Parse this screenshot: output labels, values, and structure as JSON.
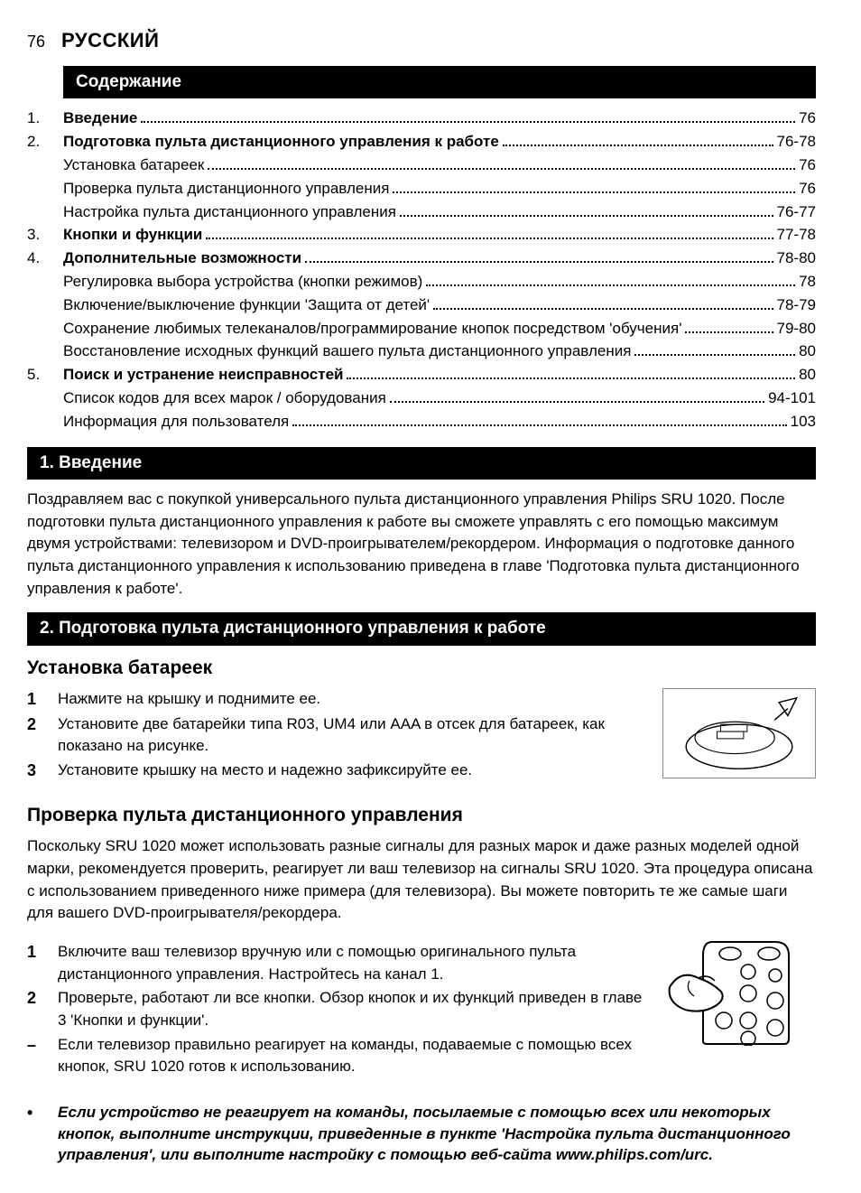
{
  "header": {
    "page_number": "76",
    "language": "РУССКИЙ"
  },
  "toc": {
    "title": "Содержание",
    "items": [
      {
        "num": "1.",
        "label": "Введение",
        "page": "76",
        "bold": true
      },
      {
        "num": "2.",
        "label": "Подготовка пульта дистанционного управления к работе",
        "page": "76-78",
        "bold": true
      },
      {
        "num": "",
        "label": "Установка батареек",
        "page": "76",
        "bold": false
      },
      {
        "num": "",
        "label": "Проверка пульта дистанционного управления",
        "page": "76",
        "bold": false
      },
      {
        "num": "",
        "label": "Настройка пульта дистанционного управления",
        "page": "76-77",
        "bold": false
      },
      {
        "num": "3.",
        "label": "Кнопки и функции",
        "page": "77-78",
        "bold": true
      },
      {
        "num": "4.",
        "label": "Дополнительные возможности",
        "page": "78-80",
        "bold": true
      },
      {
        "num": "",
        "label": "Регулировка выбора устройства (кнопки режимов)",
        "page": "78",
        "bold": false
      },
      {
        "num": "",
        "label": "Включение/выключение функции 'Защита от детей'",
        "page": "78-79",
        "bold": false
      },
      {
        "num": "",
        "label": "Сохранение любимых телеканалов/программирование кнопок посредством 'обучения'",
        "page": "79-80",
        "bold": false
      },
      {
        "num": "",
        "label": "Восстановление исходных функций вашего пульта дистанционного управления",
        "page": "80",
        "bold": false
      },
      {
        "num": "5.",
        "label": "Поиск и устранение неисправностей",
        "page": "80",
        "bold": true
      },
      {
        "num": "",
        "label": "Список кодов для всех марок / оборудования",
        "page": "94-101",
        "bold": false
      },
      {
        "num": "",
        "label": "Информация для пользователя",
        "page": "103",
        "bold": false
      }
    ]
  },
  "intro": {
    "heading": "1. Введение",
    "text": "Поздравляем вас с покупкой универсального пульта дистанционного управления Philips SRU 1020. После подготовки пульта дистанционного управления к работе вы сможете управлять с его помощью максимум двумя устройствами: телевизором и DVD-проигрывателем/рекордером. Информация о подготовке данного пульта дистанционного управления к использованию приведена в главе 'Подготовка пульта дистанционного управления к работе'."
  },
  "prep": {
    "heading": "2. Подготовка пульта дистанционного управления к работе",
    "batteries": {
      "heading": "Установка батареек",
      "steps": [
        {
          "num": "1",
          "text": "Нажмите на крышку и поднимите ее."
        },
        {
          "num": "2",
          "text": "Установите две батарейки типа R03, UM4 или AAA в отсек для батареек, как показано на рисунке."
        },
        {
          "num": "3",
          "text": "Установите крышку на место и надежно зафиксируйте ее."
        }
      ]
    },
    "test": {
      "heading": "Проверка пульта дистанционного управления",
      "intro": "Поскольку SRU 1020 может использовать разные сигналы для разных марок и даже разных моделей одной марки, рекомендуется проверить, реагирует ли ваш телевизор на сигналы SRU 1020. Эта процедура описана с использованием приведенного ниже примера (для телевизора). Вы можете повторить те же самые шаги для вашего DVD-проигрывателя/рекордера.",
      "steps": [
        {
          "num": "1",
          "text": "Включите ваш телевизор вручную или с помощью оригинального пульта дистанционного управления. Настройтесь на канал 1."
        },
        {
          "num": "2",
          "text": "Проверьте, работают ли все кнопки. Обзор кнопок и их функций приведен в главе 3 'Кнопки и функции'."
        },
        {
          "num": "–",
          "text": "Если телевизор правильно реагирует на команды, подаваемые с помощью всех кнопок, SRU 1020 готов к использованию."
        }
      ],
      "note_bullet": "•",
      "note": "Если устройство не реагирует на команды, посылаемые с помощью всех или некоторых кнопок, выполните инструкции, приведенные в пункте 'Настройка пульта дистанционного управления', или выполните настройку с помощью веб-сайта www.philips.com/urc."
    }
  }
}
